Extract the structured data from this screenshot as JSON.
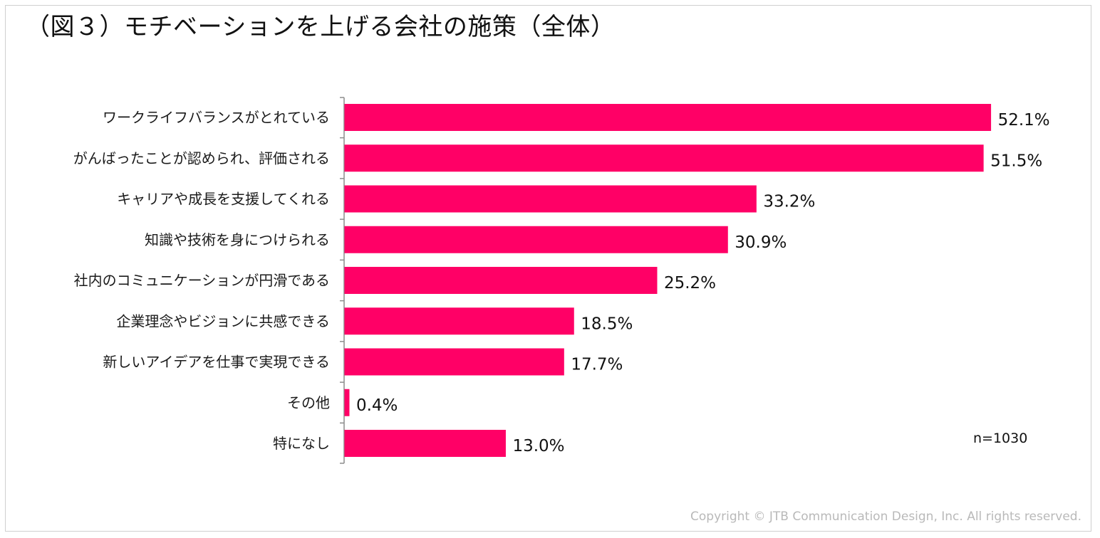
{
  "colors": {
    "bar": "#FF0066",
    "axis": "#8c8c8c",
    "frame": "#cfcfcf",
    "copyright": "#b9b9b9"
  },
  "chart_data": {
    "type": "bar",
    "orientation": "horizontal",
    "title": "（図３）モチベーションを上げる会社の施策（全体）",
    "categories": [
      "ワークライフバランスがとれている",
      "がんばったことが認められ、評価される",
      "キャリアや成長を支援してくれる",
      "知識や技術を身につけられる",
      "社内のコミュニケーションが円滑である",
      "企業理念やビジョンに共感できる",
      "新しいアイデアを仕事で実現できる",
      "その他",
      "特になし"
    ],
    "values": [
      52.1,
      51.5,
      33.2,
      30.9,
      25.2,
      18.5,
      17.7,
      0.4,
      13.0
    ],
    "value_labels": [
      "52.1%",
      "51.5%",
      "33.2%",
      "30.9%",
      "25.2%",
      "18.5%",
      "17.7%",
      "0.4%",
      "13.0%"
    ],
    "unit": "%",
    "xlim": [
      0,
      60
    ],
    "grid": false,
    "legend": "none",
    "note": "n=1030"
  },
  "footer": {
    "copyright": "Copyright © JTB Communication Design, Inc. All rights reserved."
  }
}
